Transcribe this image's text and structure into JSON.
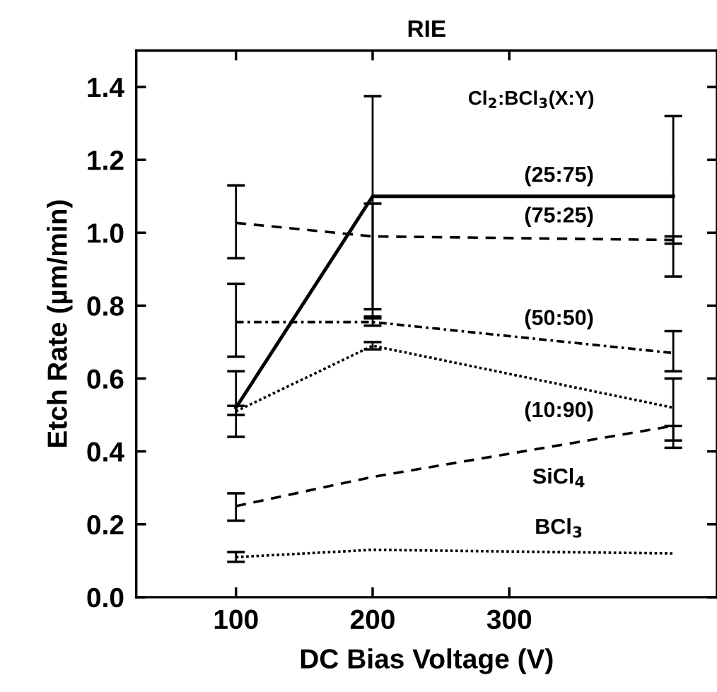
{
  "chart_data": {
    "type": "line",
    "title": "RIE",
    "xlabel": "DC Bias Voltage (V)",
    "ylabel": "Etch Rate (µm/min)",
    "x": [
      100,
      200,
      420
    ],
    "xlim": [
      27,
      452
    ],
    "xticks": [
      100,
      200,
      300
    ],
    "ylim": [
      0,
      1.5
    ],
    "yticks": [
      {
        "value": 0,
        "label": "0.0"
      },
      0.2,
      0.4,
      0.6,
      0.8,
      {
        "value": 1,
        "label": "1.0"
      },
      1.2,
      1.4
    ],
    "grid": false,
    "legend": false,
    "marker": "none",
    "annotations": [
      "Cl$_{2}$:BCl$_{3}$(X:Y)"
    ],
    "series": [
      {
        "name": "(25:75)",
        "color": "#000000",
        "line_style": "solid",
        "values": [
          0.52,
          1.1,
          1.1
        ],
        "errors": [
          [
            0.44,
            0.62
          ],
          [
            0.79,
            1.375
          ],
          [
            0.88,
            1.32
          ]
        ]
      },
      {
        "name": "(75:25)",
        "color": "#000000",
        "line_style": "dashed",
        "values": [
          1.027,
          0.99,
          0.98
        ],
        "errors": [
          [
            0.93,
            1.13
          ],
          [
            0.77,
            1.08
          ],
          [
            0.97,
            0.99
          ]
        ]
      },
      {
        "name": "(50:50)",
        "color": "#000000",
        "line_style": "dashdot",
        "values": [
          0.755,
          0.755,
          0.67
        ],
        "errors": [
          [
            0.66,
            0.86
          ],
          [
            0.745,
            0.765
          ],
          [
            0.62,
            0.73
          ]
        ]
      },
      {
        "name": "(10:90)",
        "color": "#000000",
        "line_style": "dotted",
        "values": [
          0.51,
          0.69,
          0.52
        ],
        "errors": [
          [
            0.5,
            0.525
          ],
          [
            0.68,
            0.7
          ],
          [
            0.41,
            0.6
          ]
        ]
      },
      {
        "name": "SiCl$_{4}$",
        "color": "#000000",
        "line_style": "dashed",
        "values": [
          0.25,
          0.33,
          0.47
        ],
        "errors": [
          [
            0.21,
            0.285
          ],
          null,
          [
            0.43,
            0.47
          ]
        ]
      },
      {
        "name": "BCl$_{3}$",
        "color": "#000000",
        "line_style": "dotted",
        "values": [
          0.11,
          0.13,
          0.12
        ],
        "errors": [
          [
            0.097,
            0.124
          ],
          null,
          null
        ]
      }
    ]
  }
}
